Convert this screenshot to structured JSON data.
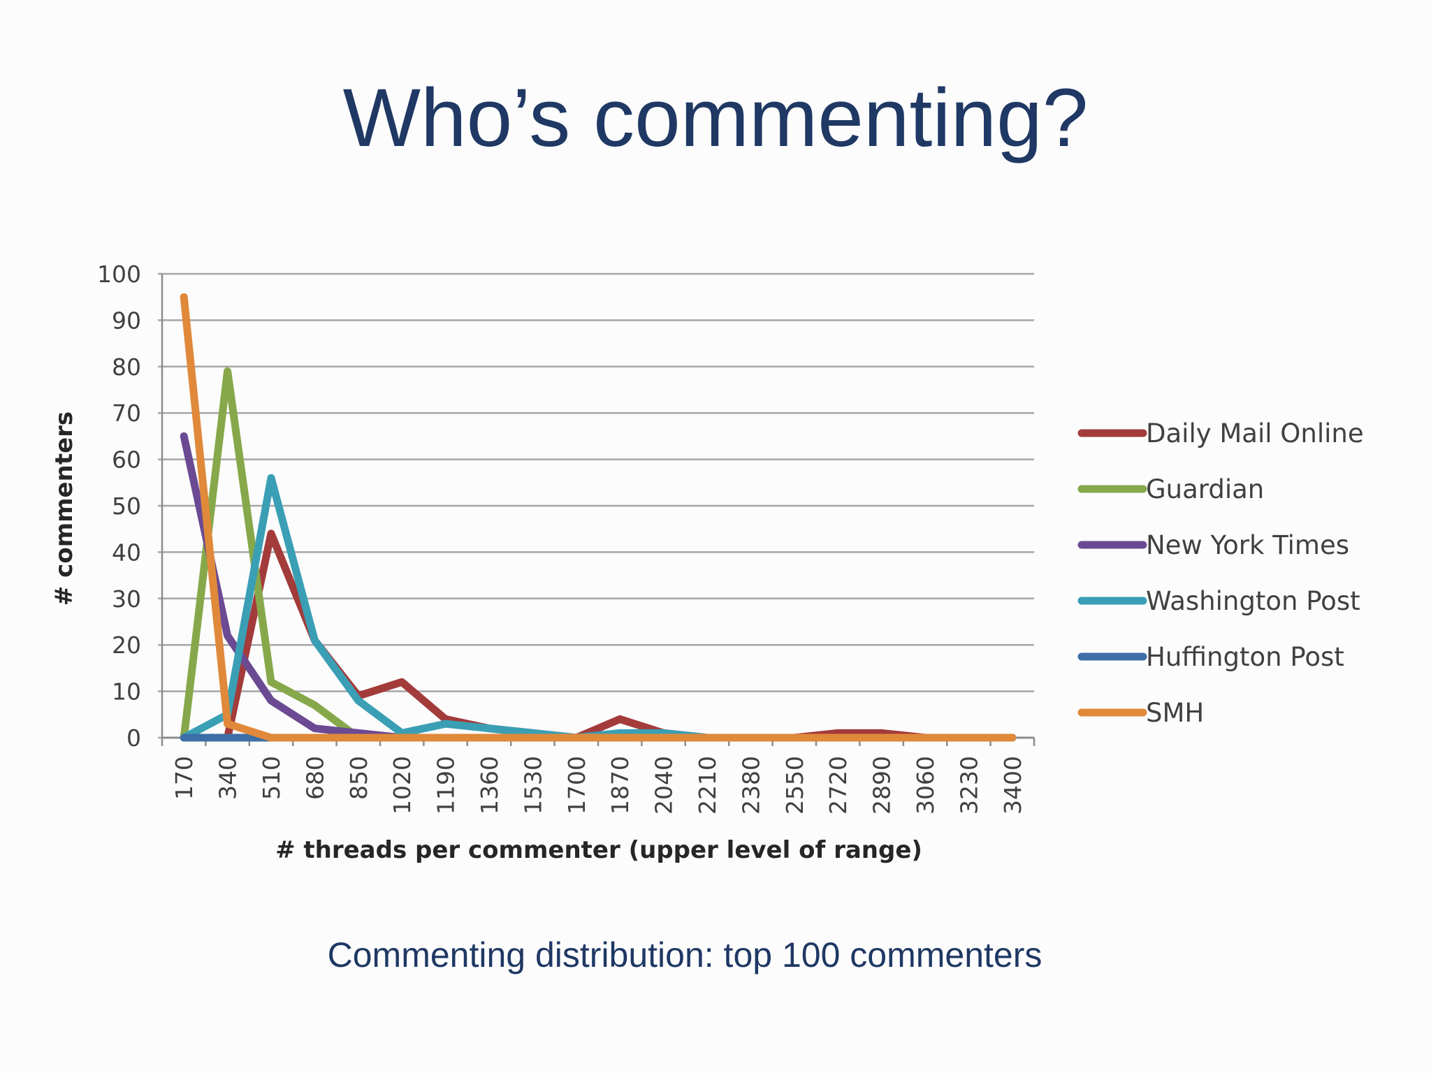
{
  "slide": {
    "title": "Who’s commenting?",
    "caption": "Commenting distribution: top 100 commenters"
  },
  "chart_data": {
    "type": "line",
    "xlabel": "# threads per commenter (upper level of range)",
    "ylabel": "# commenters",
    "ylim": [
      0,
      100
    ],
    "yticks": [
      0,
      10,
      20,
      30,
      40,
      50,
      60,
      70,
      80,
      90,
      100
    ],
    "grid": true,
    "legend_position": "right",
    "categories": [
      "170",
      "340",
      "510",
      "680",
      "850",
      "1020",
      "1190",
      "1360",
      "1530",
      "1700",
      "1870",
      "2040",
      "2210",
      "2380",
      "2550",
      "2720",
      "2890",
      "3060",
      "3230",
      "3400"
    ],
    "series": [
      {
        "name": "Daily Mail Online",
        "color": "#a33b3b",
        "values": [
          0,
          0,
          44,
          21,
          9,
          12,
          4,
          2,
          1,
          0,
          4,
          1,
          0,
          0,
          0,
          1,
          1,
          0,
          0,
          0
        ]
      },
      {
        "name": "Guardian",
        "color": "#86a84a",
        "values": [
          0,
          79,
          12,
          7,
          0,
          0,
          0,
          0,
          0,
          0,
          0,
          0,
          0,
          0,
          0,
          0,
          0,
          0,
          0,
          0
        ]
      },
      {
        "name": "New York Times",
        "color": "#6b4a93",
        "values": [
          65,
          22,
          8,
          2,
          1,
          0,
          0,
          0,
          0,
          0,
          0,
          0,
          0,
          0,
          0,
          0,
          0,
          0,
          0,
          0
        ]
      },
      {
        "name": "Washington Post",
        "color": "#3a9fb4",
        "values": [
          0,
          5,
          56,
          21,
          8,
          1,
          3,
          2,
          1,
          0,
          1,
          1,
          0,
          0,
          0,
          0,
          0,
          0,
          0,
          0
        ]
      },
      {
        "name": "Huffington Post",
        "color": "#3d6ea6",
        "values": [
          0,
          0,
          0,
          0,
          0,
          0,
          0,
          0,
          0,
          0,
          0,
          0,
          0,
          0,
          0,
          0,
          0,
          0,
          0,
          0
        ]
      },
      {
        "name": "SMH",
        "color": "#e0893a",
        "values": [
          95,
          3,
          0,
          0,
          0,
          0,
          0,
          0,
          0,
          0,
          0,
          0,
          0,
          0,
          0,
          0,
          0,
          0,
          0,
          0
        ]
      }
    ]
  }
}
